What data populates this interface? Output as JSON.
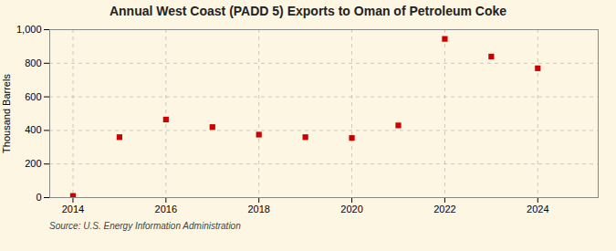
{
  "chart_data": {
    "type": "scatter",
    "title": "Annual West Coast (PADD 5) Exports to Oman of Petroleum Coke",
    "ylabel": "Thousand Barrels",
    "source": "Source: U.S. Energy Information Administration",
    "x": [
      2014,
      2015,
      2016,
      2017,
      2018,
      2019,
      2020,
      2021,
      2022,
      2023,
      2024
    ],
    "values": [
      10,
      360,
      465,
      420,
      375,
      360,
      355,
      430,
      945,
      840,
      770
    ],
    "color": "#cc0000",
    "marker": "square",
    "xlim": [
      2013.5,
      2025.3
    ],
    "xticks": [
      2014,
      2016,
      2018,
      2020,
      2022,
      2024
    ],
    "ylim": [
      0,
      1000
    ],
    "yticks": [
      0,
      200,
      400,
      600,
      800,
      {
        "value": 1000,
        "label": "1,000"
      }
    ],
    "grid": true
  }
}
